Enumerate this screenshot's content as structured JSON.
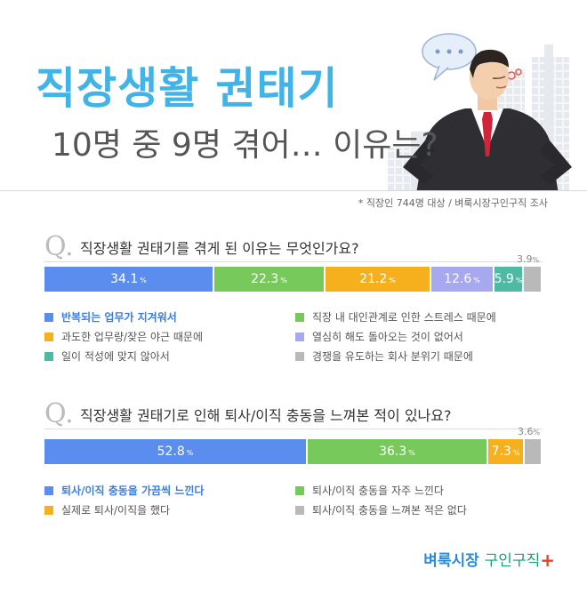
{
  "header": {
    "title": "직장생활 권태기",
    "subtitle": "10명 중 9명 겪어… 이유는?",
    "source": "* 직장인 744명 대상 / 벼룩시장구인구직 조사"
  },
  "colors": {
    "title": "#41b3e6",
    "blue": "#5b8def",
    "green": "#78c95c",
    "orange": "#f6b01e",
    "purple": "#a6a8f0",
    "teal": "#4ebaa4",
    "gray": "#b9b9b9"
  },
  "sections": [
    {
      "q_mark": "Q.",
      "question": "직장생활 권태기를 겪게 된 이유는 무엇인가요?",
      "legend_columns": 2
    },
    {
      "q_mark": "Q.",
      "question": "직장생활 권태기로 인해 퇴사/이직 충동을 느껴본 적이 있나요?",
      "legend_columns": 2
    }
  ],
  "chart_data": [
    {
      "type": "bar",
      "orientation": "horizontal-stacked-100",
      "title": "직장생활 권태기를 겪게 된 이유는 무엇인가요?",
      "unit": "%",
      "categories": [
        "반복되는 업무가 지겨워서",
        "직장 내 대인관계로 인한 스트레스 때문에",
        "과도한 업무량/잦은 야근 때문에",
        "열심히 해도 돌아오는 것이 없어서",
        "일이 적성에 맞지 않아서",
        "경쟁을 유도하는 회사 분위기 때문에"
      ],
      "values": [
        34.1,
        22.3,
        21.2,
        12.6,
        5.9,
        3.9
      ],
      "colors": [
        "#5b8def",
        "#78c95c",
        "#f6b01e",
        "#a6a8f0",
        "#4ebaa4",
        "#b9b9b9"
      ],
      "value_labels": [
        "34.1",
        "22.3",
        "21.2",
        "12.6",
        "5.9",
        "3.9"
      ]
    },
    {
      "type": "bar",
      "orientation": "horizontal-stacked-100",
      "title": "직장생활 권태기로 인해 퇴사/이직 충동을 느껴본 적이 있나요?",
      "unit": "%",
      "categories": [
        "퇴사/이직 충동을 가끔씩 느낀다",
        "퇴사/이직 충동을 자주 느낀다",
        "실제로 퇴사/이직을 했다",
        "퇴사/이직 충동을 느껴본 적은 없다"
      ],
      "values": [
        52.8,
        36.3,
        7.3,
        3.6
      ],
      "colors": [
        "#5b8def",
        "#78c95c",
        "#f6b01e",
        "#b9b9b9"
      ],
      "value_labels": [
        "52.8",
        "36.3",
        "7.3",
        "3.6"
      ]
    }
  ],
  "logo": {
    "part1": "벼룩시장",
    "part2": "구인구직",
    "mark": "+"
  }
}
